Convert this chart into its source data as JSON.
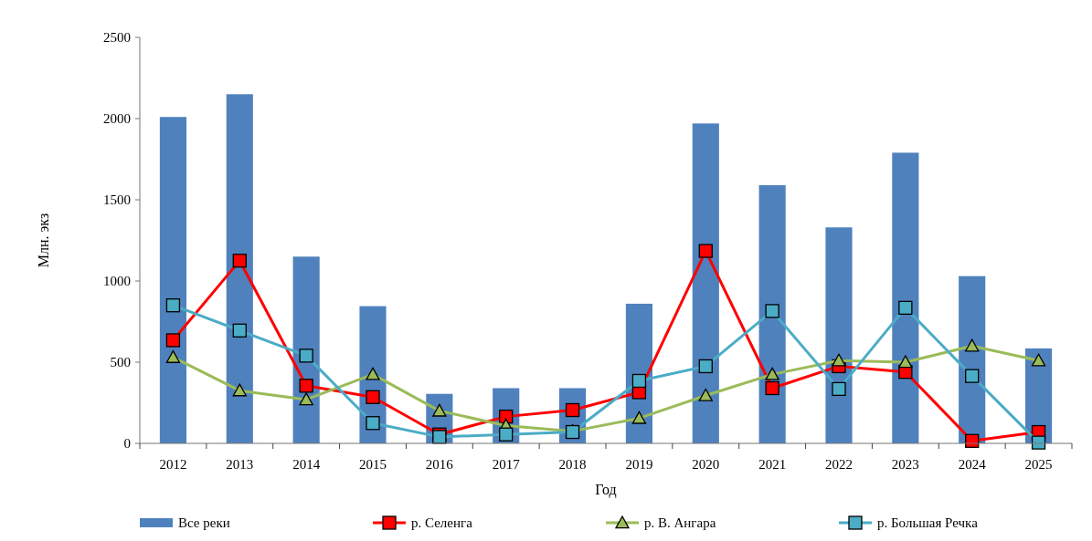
{
  "chart_data": {
    "type": "bar",
    "xlabel": "Год",
    "ylabel": "Млн. экз",
    "categories": [
      "2012",
      "2013",
      "2014",
      "2015",
      "2016",
      "2017",
      "2018",
      "2019",
      "2020",
      "2021",
      "2022",
      "2023",
      "2024",
      "2025"
    ],
    "series": [
      {
        "name": "Все реки",
        "color": "#4f81bd",
        "values": [
          2010,
          2150,
          1150,
          845,
          305,
          340,
          340,
          860,
          1970,
          1590,
          1330,
          1790,
          1030,
          585
        ]
      },
      {
        "name": "р. Селенга",
        "type": "line",
        "color": "#ff0000",
        "marker": "square",
        "values": [
          635,
          1125,
          355,
          285,
          55,
          165,
          205,
          315,
          1185,
          340,
          475,
          440,
          15,
          70
        ]
      },
      {
        "name": "р. В. Ангара",
        "type": "line",
        "color": "#9bbb59",
        "marker": "triangle",
        "values": [
          530,
          325,
          270,
          425,
          200,
          110,
          75,
          155,
          295,
          425,
          510,
          500,
          600,
          510
        ]
      },
      {
        "name": "р. Большая Речка",
        "type": "line",
        "color": "#4bacc6",
        "marker": "square",
        "values": [
          850,
          695,
          540,
          125,
          40,
          55,
          70,
          385,
          475,
          815,
          335,
          835,
          415,
          5
        ]
      }
    ],
    "ylim": [
      0,
      2500
    ],
    "yticks": [
      0,
      500,
      1000,
      1500,
      2000,
      2500
    ],
    "legend": "bottom"
  }
}
